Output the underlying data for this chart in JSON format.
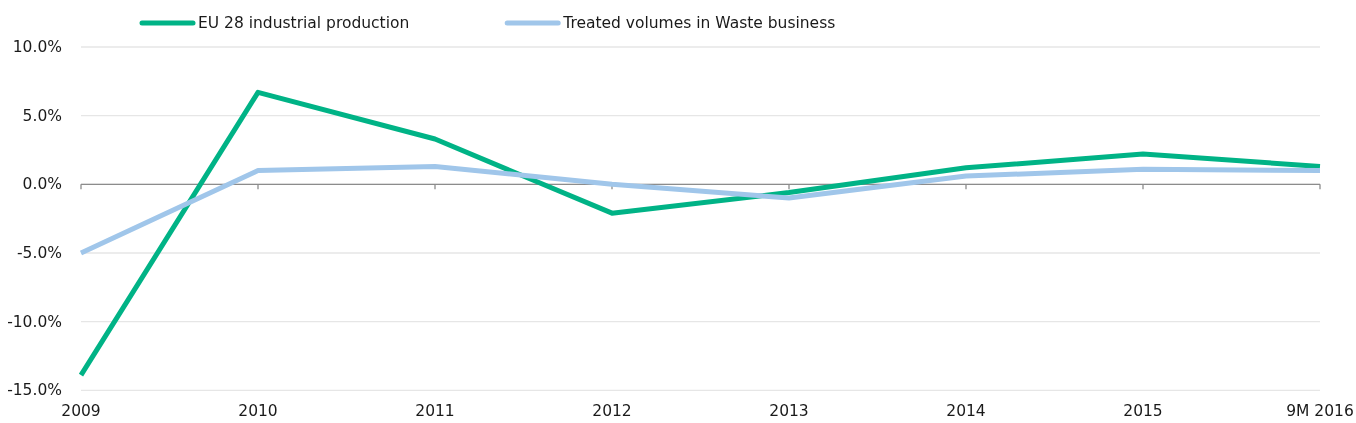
{
  "chart_data": {
    "type": "line",
    "categories": [
      "2009",
      "2010",
      "2011",
      "2012",
      "2013",
      "2014",
      "2015",
      "9M 2016"
    ],
    "series": [
      {
        "name": "EU 28 industrial production",
        "color": "#00b386",
        "values": [
          -13.9,
          6.7,
          3.3,
          -2.1,
          -0.6,
          1.2,
          2.2,
          1.3
        ]
      },
      {
        "name": "Treated volumes in Waste business",
        "color": "#a0c6ea",
        "values": [
          -5.0,
          1.0,
          1.3,
          0.0,
          -1.0,
          0.6,
          1.1,
          1.0
        ]
      }
    ],
    "ylim": [
      -15,
      10
    ],
    "yticks": [
      {
        "value": -15,
        "label": "-15.0%"
      },
      {
        "value": -10,
        "label": "-10.0%"
      },
      {
        "value": -5,
        "label": "-5.0%"
      },
      {
        "value": 0,
        "label": "0.0%"
      },
      {
        "value": 5,
        "label": "5.0%"
      },
      {
        "value": 10,
        "label": "10.0%"
      }
    ],
    "grid": "y",
    "legend": "top",
    "line_style": "solid",
    "marker": "none"
  }
}
